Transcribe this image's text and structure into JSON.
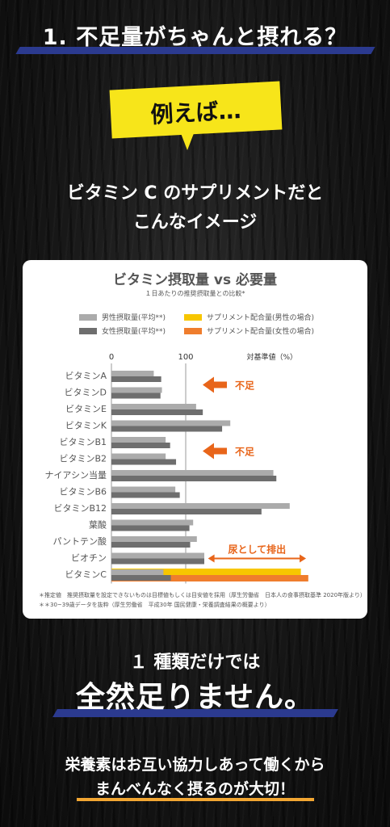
{
  "header": {
    "title": "1. 不足量がちゃんと摂れる？"
  },
  "bubble": {
    "text": "例えば…"
  },
  "lead": {
    "line1": "ビタミン C のサプリメントだと",
    "line2": "こんなイメージ"
  },
  "chart_card": {
    "footnotes": [
      "＊推定値　推奨摂取量を設定できないものは目標値もしくは目安値を採用（厚生労働省　日本人の食事摂取基準 2020年版より）",
      "＊＊30~39歳データを抜粋（厚生労働省　平成30年 国民健康・栄養調査結果の概要より）"
    ]
  },
  "chart_data": {
    "type": "bar",
    "orientation": "horizontal",
    "title": "ビタミン摂取量 vs 必要量",
    "subtitle": "１日あたりの推奨摂取量との比較*",
    "xlabel": "対基準値（%）",
    "x_ticks": [
      "0",
      "100"
    ],
    "reference_line": 100,
    "categories": [
      "ビタミンA",
      "ビタミンD",
      "ビタミンE",
      "ビタミンK",
      "ビタミンB1",
      "ビタミンB2",
      "ナイアシン当量",
      "ビタミンB6",
      "ビタミンB12",
      "葉酸",
      "パントテン酸",
      "ビオチン",
      "ビタミンC"
    ],
    "highlight_category": "ビタミンC",
    "series": [
      {
        "name": "男性摂取量(平均**)",
        "color": "#ababab",
        "values": [
          57,
          68,
          114,
          160,
          73,
          73,
          218,
          86,
          240,
          110,
          115,
          125,
          70
        ]
      },
      {
        "name": "女性摂取量(平均**)",
        "color": "#6e6e6e",
        "values": [
          67,
          66,
          123,
          149,
          79,
          87,
          222,
          92,
          202,
          105,
          106,
          125,
          80
        ]
      },
      {
        "name": "サプリメント配合量(男性の場合)",
        "color": "#f7c600",
        "values": [
          0,
          0,
          0,
          0,
          0,
          0,
          0,
          0,
          0,
          0,
          0,
          0,
          255
        ]
      },
      {
        "name": "サプリメント配合量(女性の場合)",
        "color": "#ef7d2d",
        "values": [
          0,
          0,
          0,
          0,
          0,
          0,
          0,
          0,
          0,
          0,
          0,
          0,
          265
        ]
      }
    ],
    "annotations": [
      {
        "text": "不足",
        "arrow": "left",
        "rows": [
          "ビタミンA",
          "ビタミンD"
        ],
        "color": "#e8651a"
      },
      {
        "text": "不足",
        "arrow": "left",
        "rows": [
          "ビタミンB1",
          "ビタミンB2"
        ],
        "color": "#e8651a"
      },
      {
        "text": "尿として排出",
        "arrow": "both",
        "rows": [
          "ビオチン"
        ],
        "range": [
          130,
          262
        ],
        "color": "#e8651a"
      }
    ],
    "legend_position": "top"
  },
  "conclusion": {
    "line1": "１ 種類だけでは",
    "line2": "全然足りません。"
  },
  "closing": {
    "line1": "栄養素はお互い協力しあって働くから",
    "line2": "まんべんなく摂るのが大切！"
  },
  "colors": {
    "accent_yellow": "#f7e51a",
    "accent_blue": "#2b3a8f",
    "accent_orange": "#e8651a"
  }
}
